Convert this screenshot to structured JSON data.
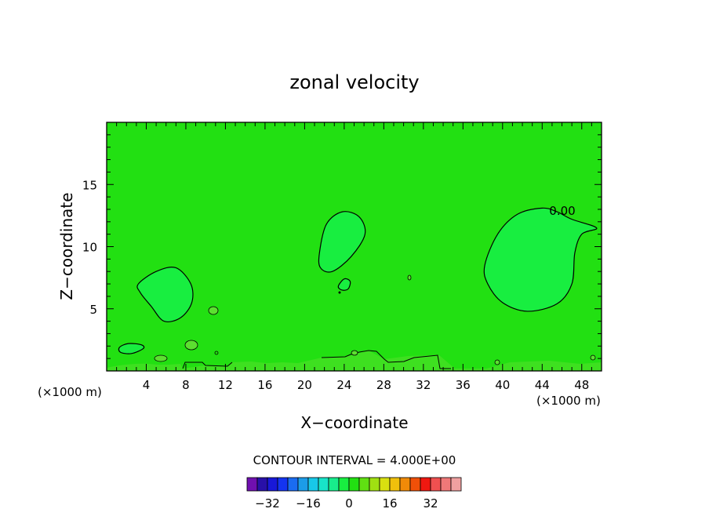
{
  "chart_data": {
    "type": "heatmap",
    "title": "zonal velocity",
    "xlabel": "X−coordinate",
    "ylabel": "Z−coordinate",
    "x_unit_left": "(×1000 m)",
    "x_unit_right": "(×1000 m)",
    "xlim": [
      0,
      50
    ],
    "ylim": [
      0,
      20
    ],
    "x_ticks": [
      4,
      8,
      12,
      16,
      20,
      24,
      28,
      32,
      36,
      40,
      44,
      48
    ],
    "y_ticks": [
      5,
      10,
      15
    ],
    "contour_label": "0.00",
    "contour_interval_text": "CONTOUR INTERVAL = 4.000E+00",
    "background_level_color": "#22e012",
    "regions": [
      {
        "name": "cell-left",
        "level": -4,
        "outline": [
          [
            3.2,
            7
          ],
          [
            5,
            8
          ],
          [
            7,
            8.3
          ],
          [
            8.5,
            7
          ],
          [
            8.6,
            5.5
          ],
          [
            7.5,
            4.3
          ],
          [
            5.8,
            4
          ],
          [
            4.5,
            5.2
          ],
          [
            3.4,
            6.3
          ]
        ]
      },
      {
        "name": "cell-center",
        "level": -4,
        "outline": [
          [
            21.5,
            9.5
          ],
          [
            22.2,
            11.8
          ],
          [
            23.8,
            12.8
          ],
          [
            25.5,
            12.4
          ],
          [
            26.1,
            11
          ],
          [
            24.7,
            9.2
          ],
          [
            22.8,
            8
          ],
          [
            21.6,
            8.3
          ]
        ]
      },
      {
        "name": "cell-right",
        "level": -4,
        "outline": [
          [
            38.2,
            8.5
          ],
          [
            39.5,
            11
          ],
          [
            41.5,
            12.6
          ],
          [
            44,
            13.1
          ],
          [
            45.5,
            12.8
          ],
          [
            47,
            12.2
          ],
          [
            49.5,
            11.5
          ],
          [
            48,
            11
          ],
          [
            47.3,
            9.5
          ],
          [
            47,
            7
          ],
          [
            45.5,
            5.4
          ],
          [
            42.5,
            4.8
          ],
          [
            40,
            5.5
          ],
          [
            38.5,
            7
          ]
        ]
      },
      {
        "name": "cell-small-left",
        "level": -4,
        "outline": [
          [
            1.3,
            1.9
          ],
          [
            2.2,
            2.2
          ],
          [
            3.5,
            2.1
          ],
          [
            3.7,
            1.8
          ],
          [
            2.5,
            1.4
          ],
          [
            1.4,
            1.5
          ]
        ]
      },
      {
        "name": "cell-small-center",
        "level": -4,
        "outline": [
          [
            23.4,
            6.8
          ],
          [
            24,
            7.4
          ],
          [
            24.6,
            7.2
          ],
          [
            24.4,
            6.6
          ],
          [
            23.8,
            6.5
          ]
        ]
      }
    ],
    "colorbar": {
      "colors": [
        "#7010b0",
        "#2810a8",
        "#1818d8",
        "#1434f0",
        "#1a6cf0",
        "#1c9ce8",
        "#18c8e8",
        "#18e4c8",
        "#18ec8c",
        "#18ee40",
        "#22e012",
        "#60e012",
        "#a0e012",
        "#d8e010",
        "#f0c00c",
        "#f08a08",
        "#f05008",
        "#f01810",
        "#f05050",
        "#f07878",
        "#f0a0a0"
      ],
      "tick_labels": [
        "−32",
        "−16",
        "0",
        "16",
        "32"
      ],
      "tick_values": [
        -32,
        -16,
        0,
        16,
        32
      ]
    }
  }
}
